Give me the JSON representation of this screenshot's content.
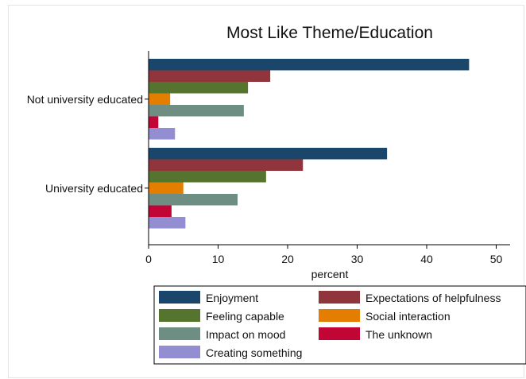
{
  "chart_data": {
    "type": "bar",
    "orientation": "horizontal",
    "title": "Most Like Theme/Education",
    "xlabel": "percent",
    "ylabel": "",
    "xlim": [
      0,
      52
    ],
    "xticks": [
      0,
      10,
      20,
      30,
      40,
      50
    ],
    "grid": false,
    "legend_position": "bottom",
    "categories": [
      "Not university educated",
      "University educated"
    ],
    "series": [
      {
        "name": "Enjoyment",
        "color": "#1a466b",
        "values": [
          46.1,
          34.3
        ]
      },
      {
        "name": "Expectations of helpfulness",
        "color": "#90353b",
        "values": [
          17.5,
          22.2
        ]
      },
      {
        "name": "Feeling capable",
        "color": "#55752f",
        "values": [
          14.3,
          16.9
        ]
      },
      {
        "name": "Social interaction",
        "color": "#e37e00",
        "values": [
          3.1,
          5.0
        ]
      },
      {
        "name": "Impact on mood",
        "color": "#6e8e84",
        "values": [
          13.7,
          12.8
        ]
      },
      {
        "name": "The unknown",
        "color": "#c10534",
        "values": [
          1.4,
          3.3
        ]
      },
      {
        "name": "Creating something",
        "color": "#938dd2",
        "values": [
          3.8,
          5.3
        ]
      }
    ]
  }
}
